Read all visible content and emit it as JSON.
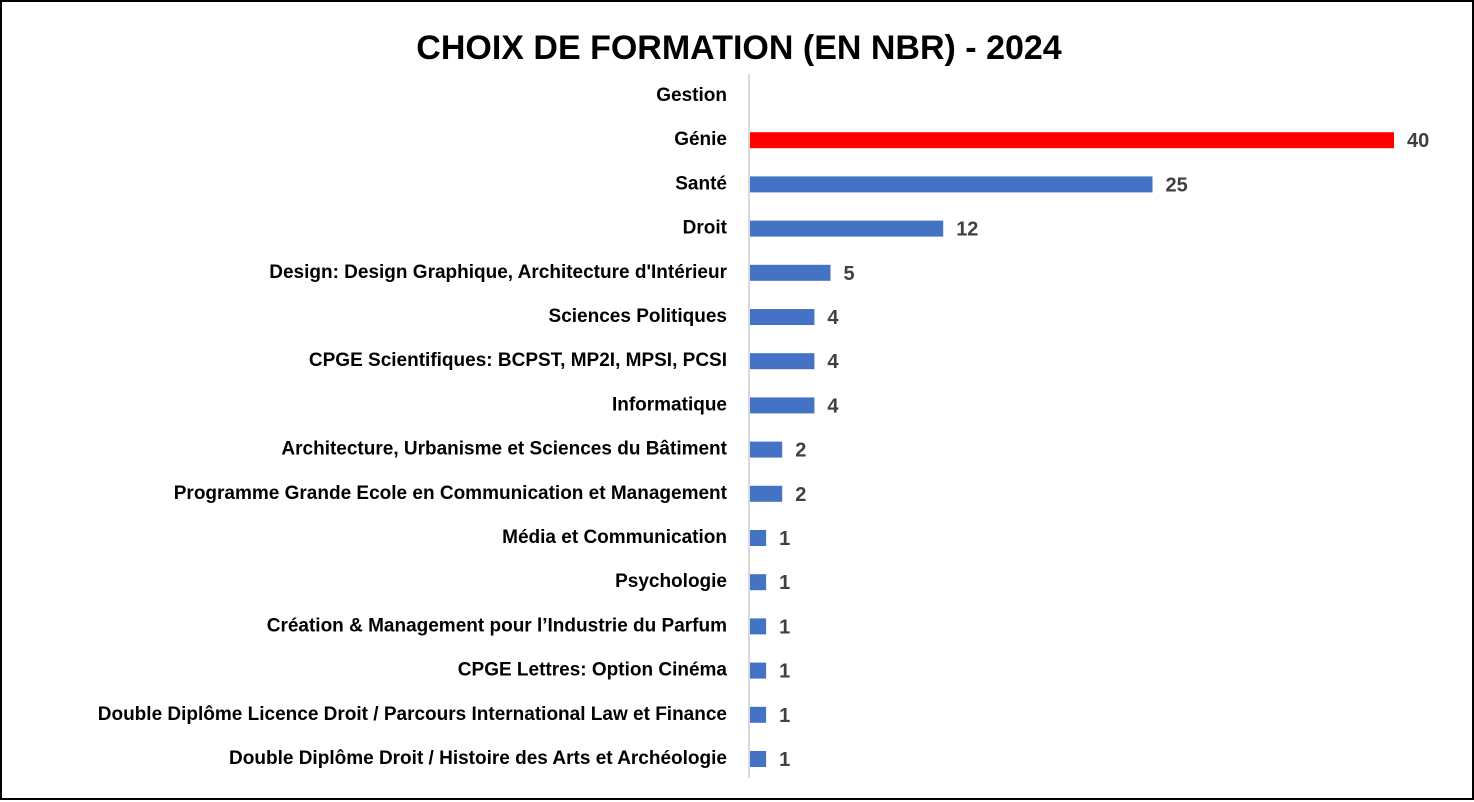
{
  "chart_data": {
    "type": "bar",
    "orientation": "horizontal",
    "title": "CHOIX DE FORMATION (EN NBR) - 2024",
    "xlabel": "",
    "ylabel": "",
    "xlim": [
      0,
      40
    ],
    "grid": false,
    "legend": "none",
    "categories": [
      "Gestion",
      "Génie",
      "Santé",
      "Droit",
      "Design: Design Graphique, Architecture d'Intérieur",
      "Sciences Politiques",
      "CPGE Scientifiques: BCPST, MP2I, MPSI, PCSI",
      "Informatique",
      "Architecture, Urbanisme et Sciences du Bâtiment",
      "Programme Grande Ecole en Communication et Management",
      "Média et Communication",
      "Psychologie",
      "Création & Management pour l’Industrie du Parfum",
      "CPGE Lettres: Option Cinéma",
      "Double Diplôme Licence Droit / Parcours International Law et Finance",
      "Double Diplôme Droit / Histoire des Arts et Archéologie"
    ],
    "values": [
      null,
      40,
      25,
      12,
      5,
      4,
      4,
      4,
      2,
      2,
      1,
      1,
      1,
      1,
      1,
      1
    ],
    "bar_colors": [
      "#4472C4",
      "#FF0000",
      "#4472C4",
      "#4472C4",
      "#4472C4",
      "#4472C4",
      "#4472C4",
      "#4472C4",
      "#4472C4",
      "#4472C4",
      "#4472C4",
      "#4472C4",
      "#4472C4",
      "#4472C4",
      "#4472C4",
      "#4472C4"
    ],
    "default_color": "#4472C4",
    "highlight_color": "#FF0000",
    "label_color": "#404040",
    "axis_color": "#D9D9D9"
  }
}
